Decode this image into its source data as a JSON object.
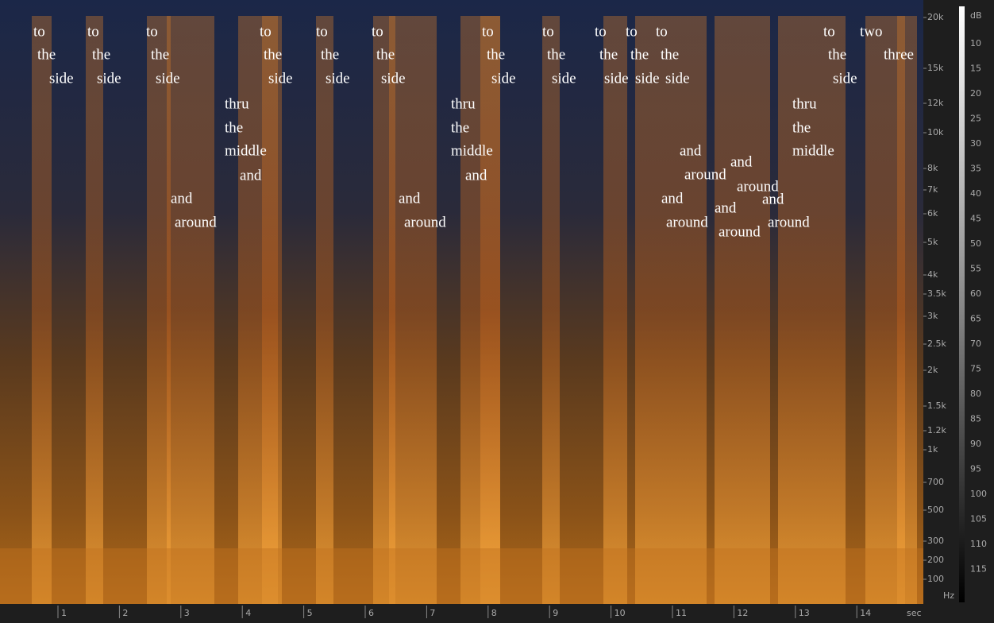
{
  "time_axis": {
    "ticks": [
      "1",
      "2",
      "3",
      "4",
      "5",
      "6",
      "7",
      "8",
      "9",
      "10",
      "11",
      "12",
      "13",
      "14"
    ],
    "unit": "sec"
  },
  "freq_axis": {
    "ticks": [
      "20k",
      "15k",
      "12k",
      "10k",
      "8k",
      "7k",
      "6k",
      "5k",
      "4k",
      "3.5k",
      "3k",
      "2.5k",
      "2k",
      "1.5k",
      "1.2k",
      "1k",
      "700",
      "500",
      "300",
      "200",
      "100"
    ],
    "unit": "Hz"
  },
  "db_scale": {
    "unit": "dB",
    "ticks": [
      "10",
      "15",
      "20",
      "25",
      "30",
      "35",
      "40",
      "45",
      "50",
      "55",
      "60",
      "65",
      "70",
      "75",
      "80",
      "85",
      "90",
      "95",
      "100",
      "105",
      "110",
      "115"
    ]
  },
  "annotations": [
    "to",
    "the",
    "side",
    "to",
    "the",
    "side",
    "to",
    "the",
    "side",
    "thru",
    "the",
    "middle",
    "and",
    "and",
    "around",
    "to",
    "the",
    "side",
    "to",
    "the",
    "side",
    "to",
    "the",
    "side",
    "and",
    "around",
    "thru",
    "the",
    "middle",
    "and",
    "to",
    "the",
    "side",
    "to",
    "the",
    "side",
    "to",
    "the",
    "side",
    "to",
    "the",
    "side",
    "to",
    "the",
    "side",
    "and",
    "around",
    "and",
    "around",
    "and",
    "around",
    "and",
    "around",
    "and",
    "around",
    "thru",
    "the",
    "middle",
    "to",
    "the",
    "side",
    "two",
    "three"
  ]
}
